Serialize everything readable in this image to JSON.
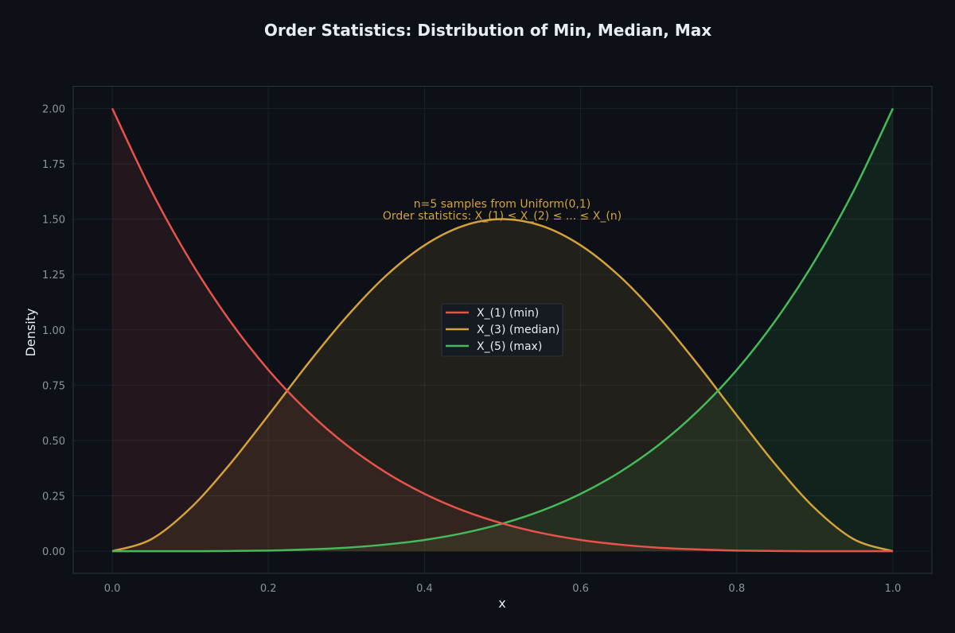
{
  "chart_data": {
    "type": "line",
    "title": "Order Statistics: Distribution of Min, Median, Max",
    "xlabel": "x",
    "ylabel": "Density",
    "xlim": [
      -0.05,
      1.05
    ],
    "ylim": [
      -0.1,
      2.1
    ],
    "xticks": [
      "0.0",
      "0.2",
      "0.4",
      "0.6",
      "0.8",
      "1.0"
    ],
    "yticks": [
      "0.00",
      "0.25",
      "0.50",
      "0.75",
      "1.00",
      "1.25",
      "1.50",
      "1.75",
      "2.00"
    ],
    "grid": true,
    "legend_position": "center",
    "x": [
      0.0,
      0.05,
      0.1,
      0.15,
      0.2,
      0.25,
      0.3,
      0.35,
      0.4,
      0.45,
      0.5,
      0.55,
      0.6,
      0.65,
      0.7,
      0.75,
      0.8,
      0.85,
      0.9,
      0.95,
      1.0
    ],
    "series": [
      {
        "name": "X_(1) (min)",
        "color": "#e5534b",
        "fill": "#e5534b",
        "values": [
          2.0,
          1.629,
          1.312,
          1.044,
          0.819,
          0.633,
          0.48,
          0.357,
          0.259,
          0.183,
          0.125,
          0.082,
          0.051,
          0.03,
          0.016,
          0.008,
          0.003,
          0.001,
          0.0,
          0.0,
          0.0
        ]
      },
      {
        "name": "X_(3) (median)",
        "color": "#d4a23a",
        "fill": "#d4a23a",
        "values": [
          0.0,
          0.054,
          0.194,
          0.39,
          0.614,
          0.844,
          1.058,
          1.242,
          1.382,
          1.47,
          1.5,
          1.47,
          1.382,
          1.242,
          1.058,
          0.844,
          0.614,
          0.39,
          0.194,
          0.054,
          0.0
        ]
      },
      {
        "name": "X_(5) (max)",
        "color": "#46b95a",
        "fill": "#46b95a",
        "values": [
          0.0,
          0.0,
          0.0,
          0.001,
          0.003,
          0.008,
          0.016,
          0.03,
          0.051,
          0.082,
          0.125,
          0.183,
          0.259,
          0.357,
          0.48,
          0.633,
          0.819,
          1.044,
          1.312,
          1.629,
          2.0
        ]
      }
    ],
    "annotation": [
      "n=5 samples from Uniform(0,1)",
      "Order statistics: X_(1) ≤ X_(2) ≤ ... ≤ X_(n)"
    ]
  },
  "colors": {
    "background": "#0d1117",
    "plot_border": "#30363d",
    "grid": "#1b2129"
  }
}
